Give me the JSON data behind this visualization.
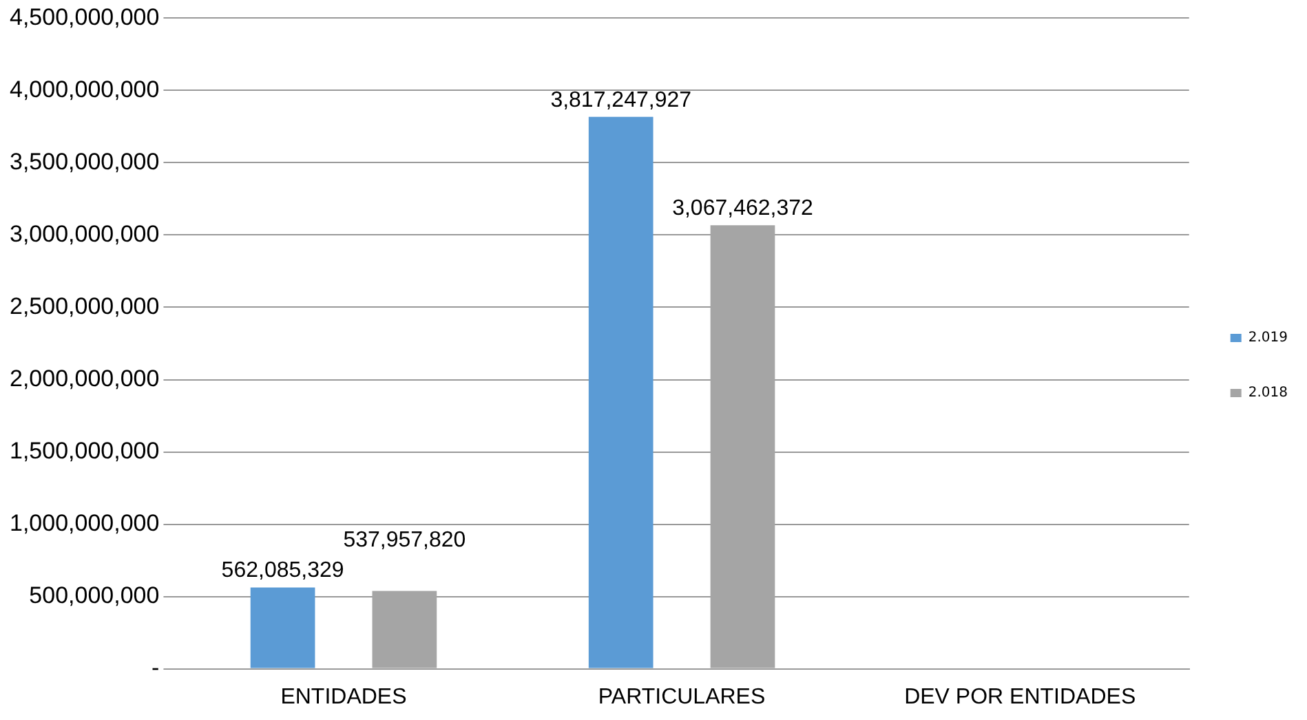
{
  "chart_data": {
    "type": "bar",
    "categories": [
      "ENTIDADES",
      "PARTICULARES",
      "DEV POR ENTIDADES"
    ],
    "series": [
      {
        "name": "2.019",
        "color": "#5b9bd5",
        "values": [
          562085329,
          3817247927,
          null
        ],
        "value_labels": [
          "562,085,329",
          "3,817,247,927",
          null
        ]
      },
      {
        "name": "2.018",
        "color": "#a5a5a5",
        "values": [
          537957820,
          3067462372,
          null
        ],
        "value_labels": [
          "537,957,820",
          "3,067,462,372",
          null
        ]
      }
    ],
    "ylim": [
      0,
      4500000000
    ],
    "yticks": [
      {
        "value": 0,
        "label": "-"
      },
      {
        "value": 500000000,
        "label": "500,000,000"
      },
      {
        "value": 1000000000,
        "label": "1,000,000,000"
      },
      {
        "value": 1500000000,
        "label": "1,500,000,000"
      },
      {
        "value": 2000000000,
        "label": "2,000,000,000"
      },
      {
        "value": 2500000000,
        "label": "2,500,000,000"
      },
      {
        "value": 3000000000,
        "label": "3,000,000,000"
      },
      {
        "value": 3500000000,
        "label": "3,500,000,000"
      },
      {
        "value": 4000000000,
        "label": "4,000,000,000"
      },
      {
        "value": 4500000000,
        "label": "4,500,000,000"
      }
    ],
    "grid": "y",
    "legend": "right"
  }
}
